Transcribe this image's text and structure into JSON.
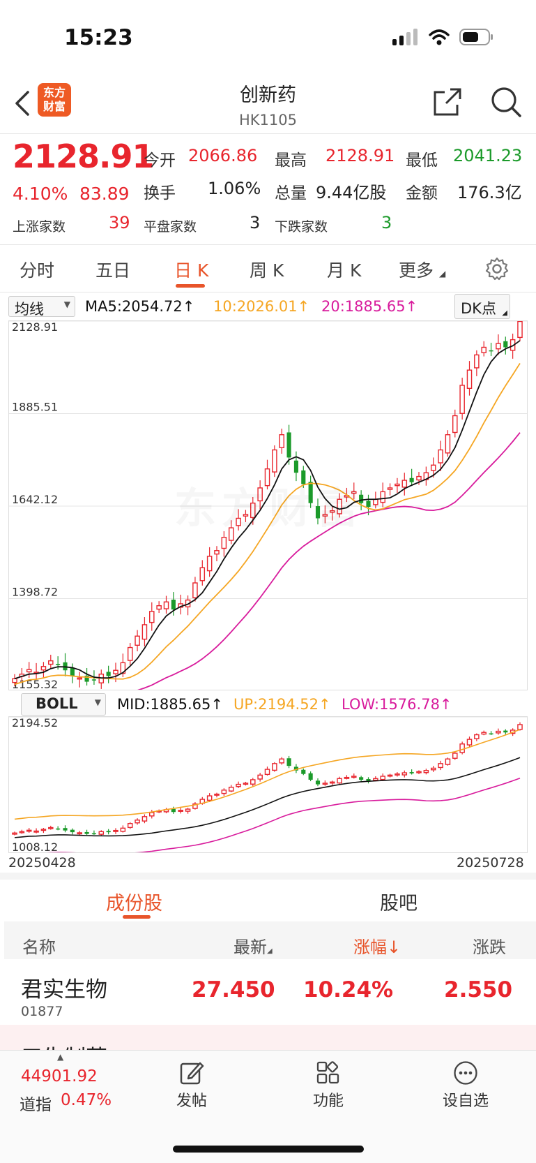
{
  "status_bar": {
    "time": "15:23"
  },
  "nav": {
    "title": "创新药",
    "code": "HK1105",
    "logo_line1": "东方",
    "logo_line2": "财富"
  },
  "quote": {
    "price": "2128.91",
    "change_pct": "4.10%",
    "change": "83.89",
    "open_label": "今开",
    "open": "2066.86",
    "high_label": "最高",
    "high": "2128.91",
    "low_label": "最低",
    "low": "2041.23",
    "turnover_label": "换手",
    "turnover": "1.06%",
    "volume_label": "总量",
    "volume": "9.44亿股",
    "amount_label": "金额",
    "amount": "176.3亿",
    "up_label": "上涨家数",
    "up": "39",
    "flat_label": "平盘家数",
    "flat": "3",
    "down_label": "下跌家数",
    "down": "3"
  },
  "tabs": [
    "分时",
    "五日",
    "日 K",
    "周 K",
    "月 K",
    "更多"
  ],
  "ma_row": {
    "select": "均线",
    "ma5": "MA5:2054.72↑",
    "ma10": "10:2026.01↑",
    "ma20": "20:1885.65↑",
    "dk_button": "DK点"
  },
  "boll_row": {
    "select": "BOLL",
    "mid": "MID:1885.65↑",
    "up": "UP:2194.52↑",
    "low": "LOW:1576.78↑"
  },
  "chart_data": [
    {
      "type": "candlestick",
      "y_ticks": [
        "2128.91",
        "1885.51",
        "1642.12",
        "1398.72",
        "1155.32"
      ],
      "ylim": [
        1155.32,
        2128.91
      ],
      "series": [
        {
          "name": "MA5",
          "color": "#111111"
        },
        {
          "name": "10",
          "color": "#f5a623"
        },
        {
          "name": "20",
          "color": "#d81b9c"
        }
      ],
      "closes": [
        1188,
        1200,
        1212,
        1205,
        1220,
        1235,
        1225,
        1210,
        1195,
        1190,
        1180,
        1185,
        1200,
        1195,
        1210,
        1230,
        1270,
        1300,
        1330,
        1365,
        1380,
        1390,
        1370,
        1385,
        1395,
        1440,
        1480,
        1510,
        1525,
        1560,
        1585,
        1610,
        1620,
        1650,
        1690,
        1740,
        1790,
        1830,
        1770,
        1730,
        1700,
        1650,
        1610,
        1620,
        1630,
        1660,
        1670,
        1680,
        1650,
        1640,
        1660,
        1680,
        1690,
        1700,
        1710,
        1705,
        1720,
        1730,
        1750,
        1790,
        1830,
        1880,
        1960,
        2000,
        2040,
        2060,
        2050,
        2070,
        2060,
        2080,
        2128
      ]
    },
    {
      "type": "candlestick",
      "y_ticks": [
        "2194.52",
        "1008.12"
      ],
      "ylim": [
        1008.12,
        2194.52
      ],
      "x_ticks": [
        "20250428",
        "20250728"
      ],
      "series": [
        {
          "name": "MID",
          "color": "#111111"
        },
        {
          "name": "UP",
          "color": "#f5a623"
        },
        {
          "name": "LOW",
          "color": "#d81b9c"
        }
      ]
    }
  ],
  "section_tabs": {
    "constituents": "成份股",
    "forum": "股吧"
  },
  "table": {
    "headers": {
      "name": "名称",
      "latest": "最新",
      "change_pct": "涨幅↓",
      "change": "涨跌"
    },
    "rows": [
      {
        "name": "君实生物",
        "code": "01877",
        "latest": "27.450",
        "change_pct": "10.24%",
        "change": "2.550"
      }
    ],
    "partial_row": "三生制药"
  },
  "bottom_bar": {
    "dow_value": "44901.92",
    "dow_label": "道指",
    "dow_pct": "0.47%",
    "post": "发帖",
    "functions": "功能",
    "watchlist": "设自选"
  },
  "colors": {
    "up": "#e8252d",
    "down": "#1b9a2a",
    "accent": "#e8542a"
  }
}
